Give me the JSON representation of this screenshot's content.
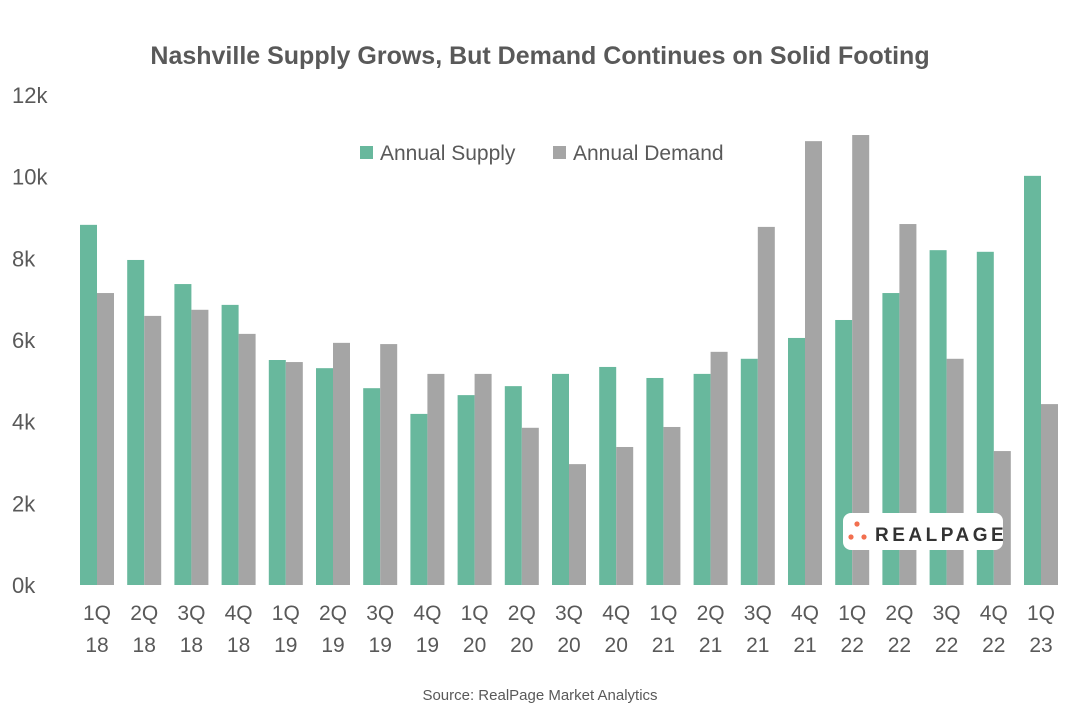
{
  "chart_data": {
    "type": "bar",
    "title": "Nashville Supply Grows, But Demand Continues on Solid Footing",
    "source": "Source: RealPage Market Analytics",
    "logo_text": "REALPAGE",
    "categories": [
      [
        "1Q",
        "18"
      ],
      [
        "2Q",
        "18"
      ],
      [
        "3Q",
        "18"
      ],
      [
        "4Q",
        "18"
      ],
      [
        "1Q",
        "19"
      ],
      [
        "2Q",
        "19"
      ],
      [
        "3Q",
        "19"
      ],
      [
        "4Q",
        "19"
      ],
      [
        "1Q",
        "20"
      ],
      [
        "2Q",
        "20"
      ],
      [
        "3Q",
        "20"
      ],
      [
        "4Q",
        "20"
      ],
      [
        "1Q",
        "21"
      ],
      [
        "2Q",
        "21"
      ],
      [
        "3Q",
        "21"
      ],
      [
        "4Q",
        "21"
      ],
      [
        "1Q",
        "22"
      ],
      [
        "2Q",
        "22"
      ],
      [
        "3Q",
        "22"
      ],
      [
        "4Q",
        "22"
      ],
      [
        "1Q",
        "23"
      ]
    ],
    "series": [
      {
        "name": "Annual Supply",
        "color": "#68b89d",
        "values": [
          8820,
          7960,
          7370,
          6860,
          5510,
          5310,
          4820,
          4190,
          4650,
          4870,
          5170,
          5340,
          5070,
          5170,
          5540,
          6050,
          6490,
          7150,
          8200,
          8160,
          10020
        ]
      },
      {
        "name": "Annual Demand",
        "color": "#a5a5a5",
        "values": [
          7150,
          6590,
          6740,
          6150,
          5460,
          5930,
          5900,
          5170,
          5170,
          3850,
          2960,
          3380,
          3870,
          5710,
          8770,
          10870,
          11020,
          8840,
          5540,
          3280,
          4430
        ]
      }
    ],
    "yticks": [
      "0k",
      "2k",
      "4k",
      "6k",
      "8k",
      "10k",
      "12k"
    ],
    "ylim": [
      0,
      12000
    ],
    "grid": false,
    "legend": "top-center"
  }
}
